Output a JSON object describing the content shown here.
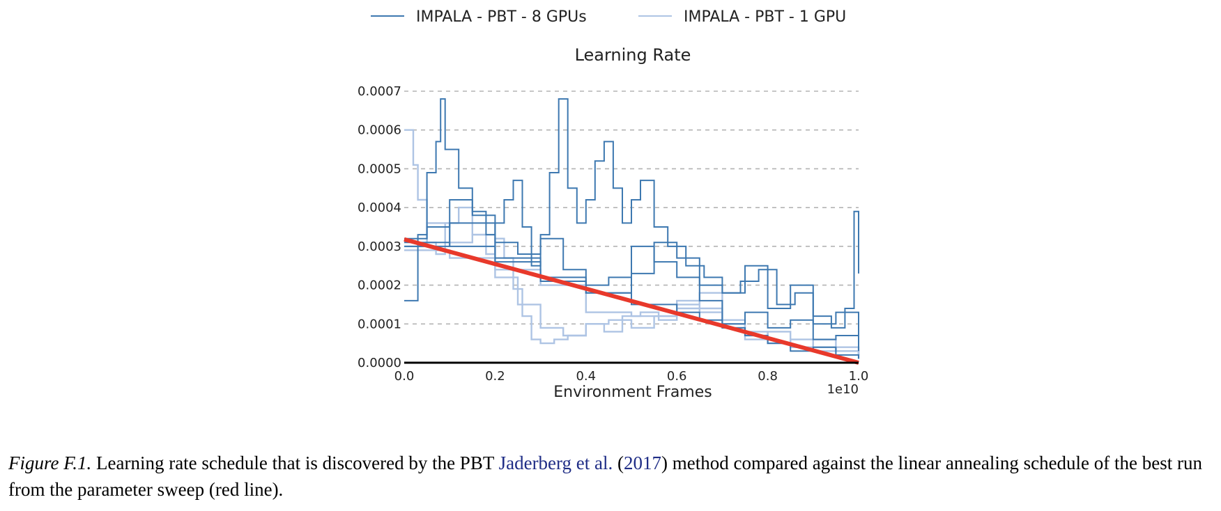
{
  "chart_data": {
    "type": "line",
    "title": "Learning Rate",
    "xlabel": "Environment Frames",
    "x_offset_label": "1e10",
    "xlim": [
      0.0,
      1.0
    ],
    "ylim": [
      0.0,
      0.0007
    ],
    "x_ticks": [
      "0.0",
      "0.2",
      "0.4",
      "0.6",
      "0.8",
      "1.0"
    ],
    "y_ticks": [
      "0.0000",
      "0.0001",
      "0.0002",
      "0.0003",
      "0.0004",
      "0.0005",
      "0.0006",
      "0.0007"
    ],
    "grid": "horizontal dashed",
    "legend_position": "top",
    "colors": {
      "gpu8": "#3d78b0",
      "gpu1": "#aec4e4",
      "linear": "#e8392b",
      "grid": "#b3b3b3"
    },
    "series": [
      {
        "name": "IMPALA - PBT - 8 GPUs",
        "lines": [
          {
            "x": [
              0.0,
              0.03,
              0.05,
              0.07,
              0.08,
              0.09,
              0.12,
              0.15,
              0.18,
              0.2,
              0.22,
              0.24,
              0.26,
              0.28,
              0.3,
              0.32,
              0.34,
              0.36,
              0.38,
              0.4,
              0.42,
              0.44,
              0.46,
              0.48,
              0.5,
              0.52,
              0.55,
              0.58,
              0.62,
              0.66,
              0.7,
              0.74,
              0.78,
              0.82,
              0.86,
              0.9,
              0.94,
              0.97,
              0.99,
              1.0
            ],
            "y": [
              0.00016,
              0.00033,
              0.00049,
              0.00057,
              0.00068,
              0.00055,
              0.00045,
              0.00039,
              0.00033,
              0.00036,
              0.00042,
              0.00047,
              0.00035,
              0.00025,
              0.00033,
              0.00049,
              0.00068,
              0.00045,
              0.00036,
              0.00042,
              0.00052,
              0.00057,
              0.00045,
              0.00036,
              0.00042,
              0.00047,
              0.00035,
              0.0003,
              0.00025,
              0.00022,
              0.00018,
              0.00021,
              0.00024,
              0.00015,
              0.00018,
              0.00012,
              9e-05,
              0.00014,
              0.00039,
              0.00023
            ]
          },
          {
            "x": [
              0.0,
              0.05,
              0.1,
              0.15,
              0.2,
              0.25,
              0.3,
              0.35,
              0.4,
              0.45,
              0.5,
              0.55,
              0.6,
              0.65,
              0.7,
              0.75,
              0.8,
              0.85,
              0.9,
              0.95,
              1.0
            ],
            "y": [
              0.00032,
              0.00035,
              0.00042,
              0.00038,
              0.00031,
              0.00028,
              0.00032,
              0.00024,
              0.0002,
              0.00022,
              0.0003,
              0.00026,
              0.00022,
              0.00016,
              0.0001,
              0.00013,
              9e-05,
              0.00011,
              6e-05,
              7e-05,
              3e-05
            ]
          },
          {
            "x": [
              0.0,
              0.1,
              0.2,
              0.3,
              0.4,
              0.5,
              0.55,
              0.6,
              0.65,
              0.7,
              0.75,
              0.8,
              0.85,
              0.9,
              0.95,
              1.0
            ],
            "y": [
              0.0003,
              0.00036,
              0.00027,
              0.00022,
              0.00018,
              0.00023,
              0.00031,
              0.00027,
              0.0002,
              0.00018,
              0.00025,
              0.00014,
              0.0002,
              0.0001,
              0.00013,
              5e-05
            ]
          },
          {
            "x": [
              0.0,
              0.1,
              0.2,
              0.3,
              0.4,
              0.5,
              0.6,
              0.65,
              0.7,
              0.75,
              0.8,
              0.85,
              0.9,
              0.95,
              1.0
            ],
            "y": [
              0.00031,
              0.0003,
              0.00026,
              0.00021,
              0.00018,
              0.00015,
              0.00013,
              0.00011,
              9e-05,
              7e-05,
              5e-05,
              3e-05,
              4e-05,
              2e-05,
              1e-05
            ]
          }
        ]
      },
      {
        "name": "IMPALA - PBT - 1 GPU",
        "lines": [
          {
            "x": [
              0.0,
              0.01,
              0.02,
              0.03,
              0.05,
              0.07,
              0.09,
              0.12,
              0.15,
              0.18,
              0.2,
              0.22,
              0.24,
              0.26,
              0.28,
              0.3,
              0.33,
              0.36,
              0.4,
              0.44,
              0.48,
              0.52,
              0.56,
              0.6,
              0.65,
              0.7,
              0.75,
              0.8,
              0.85,
              0.9,
              0.95,
              1.0
            ],
            "y": [
              0.0006,
              0.0006,
              0.00051,
              0.00042,
              0.00031,
              0.00028,
              0.00036,
              0.0004,
              0.00033,
              0.00028,
              0.00032,
              0.00027,
              0.00019,
              0.00012,
              6e-05,
              5e-05,
              6e-05,
              7e-05,
              0.0001,
              8e-05,
              0.00012,
              0.00013,
              0.00011,
              0.00016,
              0.00013,
              9e-05,
              6e-05,
              8e-05,
              4e-05,
              6e-05,
              3e-05,
              2e-05
            ]
          },
          {
            "x": [
              0.0,
              0.05,
              0.1,
              0.15,
              0.2,
              0.25,
              0.3,
              0.35,
              0.4,
              0.45,
              0.5,
              0.55,
              0.6,
              0.65,
              0.7,
              0.75,
              0.8,
              0.85,
              0.9,
              0.95,
              1.0
            ],
            "y": [
              0.0003,
              0.00036,
              0.00031,
              0.00033,
              0.00022,
              0.00015,
              9e-05,
              7e-05,
              0.0001,
              0.00011,
              9e-05,
              0.00012,
              0.00015,
              0.00018,
              0.00011,
              8e-05,
              5e-05,
              6e-05,
              4e-05,
              3e-05,
              2e-05
            ]
          },
          {
            "x": [
              0.0,
              0.1,
              0.2,
              0.3,
              0.4,
              0.5,
              0.6,
              0.7,
              0.75,
              0.8,
              0.85,
              0.9,
              0.95,
              1.0
            ],
            "y": [
              0.00029,
              0.00027,
              0.00024,
              0.0002,
              0.00013,
              0.00012,
              0.00014,
              0.0001,
              7e-05,
              5e-05,
              4e-05,
              3e-05,
              4e-05,
              1e-05
            ]
          }
        ]
      },
      {
        "name": "",
        "role": "linear annealing (red line)",
        "lines": [
          {
            "x": [
              0.0,
              1.0
            ],
            "y": [
              0.000318,
              0.0
            ]
          }
        ]
      }
    ]
  },
  "legend": [
    {
      "label": "IMPALA - PBT - 8 GPUs",
      "color": "#3d78b0"
    },
    {
      "label": "IMPALA - PBT - 1 GPU",
      "color": "#aec4e4"
    }
  ],
  "caption": {
    "figure_label": "Figure F.1.",
    "text_before": " Learning rate schedule that is discovered by the PBT ",
    "cite_authors": "Jaderberg et al.",
    "cite_open": " (",
    "cite_year": "2017",
    "text_after": ") method compared against the linear annealing schedule of the best run from the parameter sweep (red line)."
  }
}
